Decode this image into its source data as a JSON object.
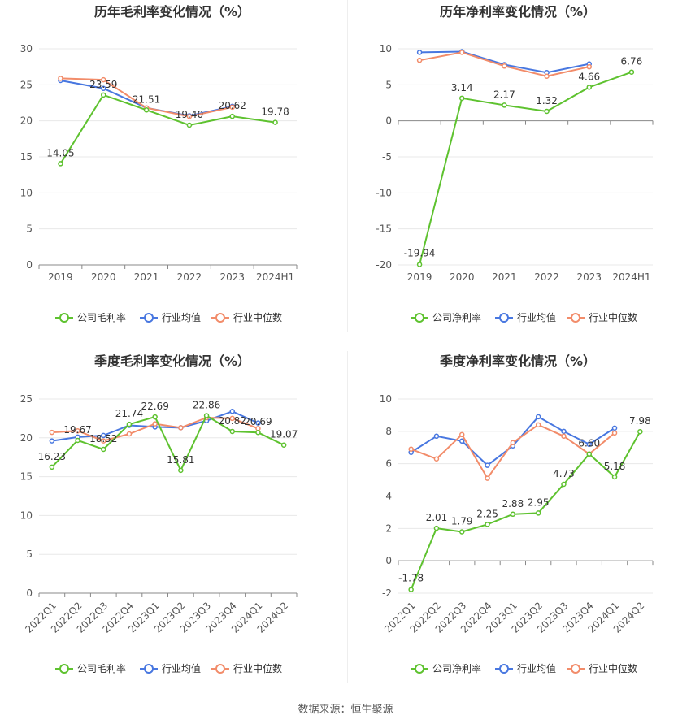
{
  "source_note": "数据来源：恒生聚源",
  "colors": {
    "company": "#5ec22f",
    "industry_avg": "#4877e0",
    "industry_median": "#f28c6a",
    "axis": "#888888",
    "grid": "#e8e8e8",
    "text": "#555555",
    "title": "#333333"
  },
  "chart_data": [
    {
      "type": "line",
      "title": "历年毛利率变化情况（%）",
      "categories": [
        "2019",
        "2020",
        "2021",
        "2022",
        "2023",
        "2024H1"
      ],
      "ylim": [
        0,
        30
      ],
      "yticks": [
        0,
        5,
        10,
        15,
        20,
        25,
        30
      ],
      "grid": true,
      "legend_position": "bottom",
      "series": [
        {
          "name": "公司毛利率",
          "role": "company",
          "values": [
            14.05,
            23.59,
            21.51,
            19.4,
            20.62,
            19.78
          ],
          "labels": [
            "14.05",
            "23.59",
            "21.51",
            "19.40",
            "20.62",
            "19.78"
          ]
        },
        {
          "name": "行业均值",
          "role": "industry_avg",
          "values": [
            25.6,
            24.5,
            21.8,
            20.7,
            22.0,
            null
          ]
        },
        {
          "name": "行业中位数",
          "role": "industry_median",
          "values": [
            25.9,
            25.7,
            21.8,
            20.6,
            21.9,
            null
          ]
        }
      ]
    },
    {
      "type": "line",
      "title": "历年净利率变化情况（%）",
      "categories": [
        "2019",
        "2020",
        "2021",
        "2022",
        "2023",
        "2024H1"
      ],
      "ylim": [
        -20,
        10
      ],
      "yticks": [
        -20,
        -15,
        -10,
        -5,
        0,
        5,
        10
      ],
      "grid": true,
      "legend_position": "bottom",
      "series": [
        {
          "name": "公司净利率",
          "role": "company",
          "values": [
            -19.94,
            3.14,
            2.17,
            1.32,
            4.66,
            6.76
          ],
          "labels": [
            "-19.94",
            "3.14",
            "2.17",
            "1.32",
            "4.66",
            "6.76"
          ]
        },
        {
          "name": "行业均值",
          "role": "industry_avg",
          "values": [
            9.5,
            9.6,
            7.8,
            6.7,
            7.9,
            null
          ]
        },
        {
          "name": "行业中位数",
          "role": "industry_median",
          "values": [
            8.4,
            9.5,
            7.6,
            6.2,
            7.5,
            null
          ]
        }
      ]
    },
    {
      "type": "line",
      "title": "季度毛利率变化情况（%）",
      "categories": [
        "2022Q1",
        "2022Q2",
        "2022Q3",
        "2022Q4",
        "2023Q1",
        "2023Q2",
        "2023Q3",
        "2023Q4",
        "2024Q1",
        "2024Q2"
      ],
      "ylim": [
        0,
        25
      ],
      "yticks": [
        0,
        5,
        10,
        15,
        20,
        25
      ],
      "grid": true,
      "legend_position": "bottom",
      "series": [
        {
          "name": "公司毛利率",
          "role": "company",
          "values": [
            16.23,
            19.67,
            18.52,
            21.74,
            22.69,
            15.81,
            22.86,
            20.82,
            20.69,
            19.07
          ],
          "labels": [
            "16.23",
            "19.67",
            "18.52",
            "21.74",
            "22.69",
            "15.81",
            "22.86",
            "20.82",
            "20.69",
            "19.07"
          ]
        },
        {
          "name": "行业均值",
          "role": "industry_avg",
          "values": [
            19.6,
            20.1,
            20.3,
            21.6,
            21.4,
            21.3,
            22.2,
            23.4,
            21.9,
            null
          ]
        },
        {
          "name": "行业中位数",
          "role": "industry_median",
          "values": [
            20.7,
            20.9,
            19.6,
            20.5,
            21.8,
            21.3,
            22.6,
            22.5,
            21.2,
            null
          ]
        }
      ]
    },
    {
      "type": "line",
      "title": "季度净利率变化情况（%）",
      "categories": [
        "2022Q1",
        "2022Q2",
        "2022Q3",
        "2022Q4",
        "2023Q1",
        "2023Q2",
        "2023Q3",
        "2023Q4",
        "2024Q1",
        "2024Q2"
      ],
      "ylim": [
        -2,
        10
      ],
      "yticks": [
        -2,
        0,
        2,
        4,
        6,
        8,
        10
      ],
      "grid": true,
      "legend_position": "bottom",
      "series": [
        {
          "name": "公司净利率",
          "role": "company",
          "values": [
            -1.78,
            2.01,
            1.79,
            2.25,
            2.88,
            2.95,
            4.73,
            6.6,
            5.18,
            7.98
          ],
          "labels": [
            "-1.78",
            "2.01",
            "1.79",
            "2.25",
            "2.88",
            "2.95",
            "4.73",
            "6.60",
            "5.18",
            "7.98"
          ]
        },
        {
          "name": "行业均值",
          "role": "industry_avg",
          "values": [
            6.7,
            7.7,
            7.4,
            5.9,
            7.1,
            8.9,
            8.0,
            7.2,
            8.2,
            null
          ]
        },
        {
          "name": "行业中位数",
          "role": "industry_median",
          "values": [
            6.9,
            6.3,
            7.8,
            5.1,
            7.3,
            8.4,
            7.7,
            6.6,
            7.9,
            null
          ]
        }
      ]
    }
  ]
}
